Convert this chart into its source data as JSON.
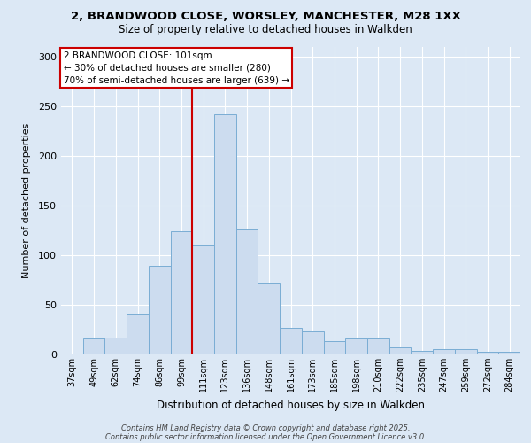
{
  "title_line1": "2, BRANDWOOD CLOSE, WORSLEY, MANCHESTER, M28 1XX",
  "title_line2": "Size of property relative to detached houses in Walkden",
  "xlabel": "Distribution of detached houses by size in Walkden",
  "ylabel": "Number of detached properties",
  "categories": [
    "37sqm",
    "49sqm",
    "62sqm",
    "74sqm",
    "86sqm",
    "99sqm",
    "111sqm",
    "123sqm",
    "136sqm",
    "148sqm",
    "161sqm",
    "173sqm",
    "185sqm",
    "198sqm",
    "210sqm",
    "222sqm",
    "235sqm",
    "247sqm",
    "259sqm",
    "272sqm",
    "284sqm"
  ],
  "values": [
    1,
    16,
    17,
    41,
    89,
    124,
    110,
    242,
    126,
    72,
    27,
    23,
    13,
    16,
    16,
    7,
    4,
    5,
    5,
    3,
    3
  ],
  "bar_color": "#ccdcef",
  "bar_edge_color": "#7aadd4",
  "vline_color": "#cc0000",
  "annotation_title": "2 BRANDWOOD CLOSE: 101sqm",
  "annotation_line1": "← 30% of detached houses are smaller (280)",
  "annotation_line2": "70% of semi-detached houses are larger (639) →",
  "annotation_box_color": "#cc0000",
  "ylim": [
    0,
    310
  ],
  "yticks": [
    0,
    50,
    100,
    150,
    200,
    250,
    300
  ],
  "footer_line1": "Contains HM Land Registry data © Crown copyright and database right 2025.",
  "footer_line2": "Contains public sector information licensed under the Open Government Licence v3.0.",
  "bg_color": "#dce8f5",
  "plot_bg_color": "#dce8f5"
}
